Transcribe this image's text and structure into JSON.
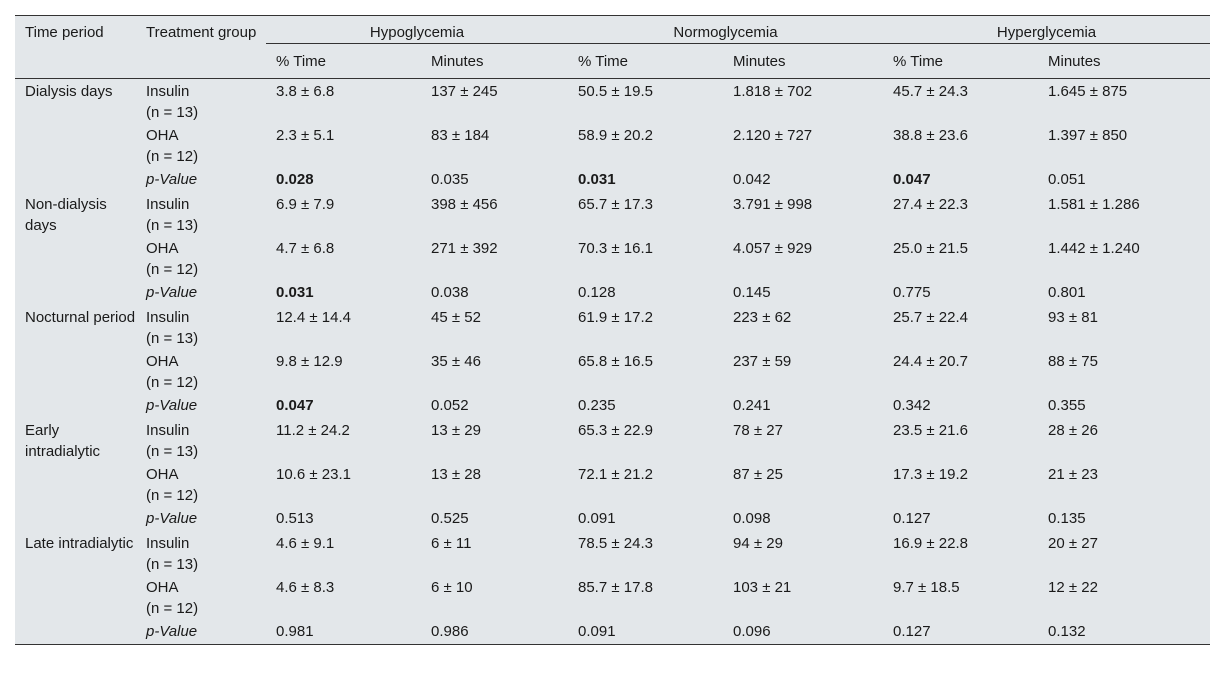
{
  "headers": {
    "time_period": "Time period",
    "treatment_group": "Treatment group",
    "groups": [
      "Hypoglycemia",
      "Normoglycemia",
      "Hyperglycemia"
    ],
    "sub": [
      "% Time",
      "Minutes",
      "% Time",
      "Minutes",
      "% Time",
      "Minutes"
    ]
  },
  "rows": [
    {
      "period": "Dialysis days",
      "insulin": {
        "label": "Insulin",
        "n": "(n = 13)",
        "vals": [
          "3.8 ± 6.8",
          "137 ± 245",
          "50.5 ± 19.5",
          "1.818 ± 702",
          "45.7 ± 24.3",
          "1.645 ± 875"
        ]
      },
      "oha": {
        "label": "OHA",
        "n": "(n = 12)",
        "vals": [
          "2.3 ± 5.1",
          "83 ± 184",
          "58.9 ± 20.2",
          "2.120 ± 727",
          "38.8 ± 23.6",
          "1.397 ± 850"
        ]
      },
      "p": {
        "label": "p-Value",
        "vals": [
          "0.028",
          "0.035",
          "0.031",
          "0.042",
          "0.047",
          "0.051"
        ]
      }
    },
    {
      "period": "Non-dialysis days",
      "insulin": {
        "label": "Insulin",
        "n": "(n = 13)",
        "vals": [
          "6.9 ± 7.9",
          "398 ± 456",
          "65.7 ± 17.3",
          "3.791 ± 998",
          "27.4 ± 22.3",
          "1.581 ± 1.286"
        ]
      },
      "oha": {
        "label": "OHA",
        "n": "(n = 12)",
        "vals": [
          "4.7 ± 6.8",
          "271 ± 392",
          "70.3 ± 16.1",
          "4.057 ± 929",
          "25.0 ± 21.5",
          "1.442 ± 1.240"
        ]
      },
      "p": {
        "label": "p-Value",
        "vals": [
          "0.031",
          "0.038",
          "0.128",
          "0.145",
          "0.775",
          "0.801"
        ]
      }
    },
    {
      "period": "Nocturnal period",
      "insulin": {
        "label": "Insulin",
        "n": "(n = 13)",
        "vals": [
          "12.4 ± 14.4",
          "45 ± 52",
          "61.9 ± 17.2",
          "223 ± 62",
          "25.7 ± 22.4",
          "93 ± 81"
        ]
      },
      "oha": {
        "label": "OHA",
        "n": "(n = 12)",
        "vals": [
          "9.8 ± 12.9",
          "35 ± 46",
          "65.8 ± 16.5",
          "237 ± 59",
          "24.4 ± 20.7",
          "88 ± 75"
        ]
      },
      "p": {
        "label": "p-Value",
        "vals": [
          "0.047",
          "0.052",
          "0.235",
          "0.241",
          "0.342",
          "0.355"
        ]
      }
    },
    {
      "period": "Early intradialytic",
      "insulin": {
        "label": "Insulin",
        "n": "(n = 13)",
        "vals": [
          "11.2 ± 24.2",
          "13 ± 29",
          "65.3 ± 22.9",
          "78 ± 27",
          "23.5 ± 21.6",
          "28 ± 26"
        ]
      },
      "oha": {
        "label": "OHA",
        "n": "(n = 12)",
        "vals": [
          "10.6 ± 23.1",
          "13 ± 28",
          "72.1 ± 21.2",
          "87 ± 25",
          "17.3 ± 19.2",
          "21 ± 23"
        ]
      },
      "p": {
        "label": "p-Value",
        "vals": [
          "0.513",
          "0.525",
          "0.091",
          "0.098",
          "0.127",
          "0.135"
        ]
      }
    },
    {
      "period": "Late intradialytic",
      "insulin": {
        "label": "Insulin",
        "n": "(n = 13)",
        "vals": [
          "4.6 ± 9.1",
          "6 ± 11",
          "78.5 ± 24.3",
          "94 ± 29",
          "16.9 ± 22.8",
          "20 ± 27"
        ]
      },
      "oha": {
        "label": "OHA",
        "n": "(n = 12)",
        "vals": [
          "4.6 ± 8.3",
          "6 ± 10",
          "85.7 ± 17.8",
          "103 ± 21",
          "9.7 ± 18.5",
          "12 ± 22"
        ]
      },
      "p": {
        "label": "p-Value",
        "vals": [
          "0.981",
          "0.986",
          "0.091",
          "0.096",
          "0.127",
          "0.132"
        ]
      }
    }
  ],
  "bold_p": [
    [
      true,
      false,
      true,
      false,
      true,
      false
    ],
    [
      true,
      false,
      false,
      false,
      false,
      false
    ],
    [
      true,
      false,
      false,
      false,
      false,
      false
    ],
    [
      false,
      false,
      false,
      false,
      false,
      false
    ],
    [
      false,
      false,
      false,
      false,
      false,
      false
    ]
  ]
}
